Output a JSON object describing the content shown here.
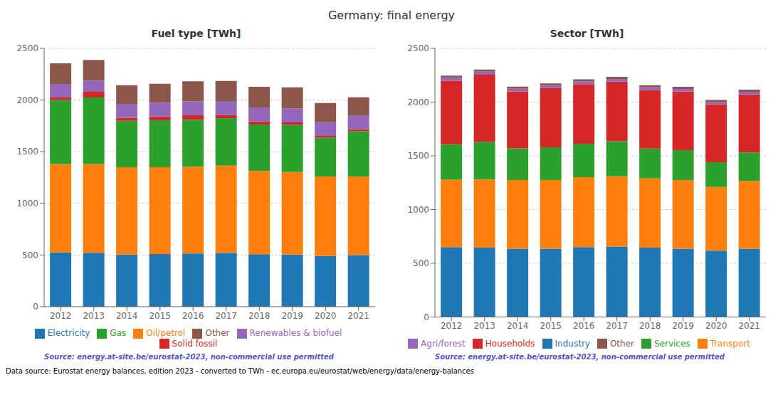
{
  "title": "Germany: final energy",
  "annotations": [
    "Data source: Eurostat energy balances, edition 2023 - converted to TWh - ec.europa.eu/eurostat/web/energy/data/energy-balances"
  ],
  "chart_data": [
    {
      "type": "bar",
      "stacked": true,
      "title": "Fuel type [TWh]",
      "categories": [
        2012,
        2013,
        2014,
        2015,
        2016,
        2017,
        2018,
        2019,
        2020,
        2021
      ],
      "series": [
        {
          "name": "Electricity",
          "color": "#1f77b4",
          "values": [
            525,
            522,
            505,
            510,
            515,
            520,
            508,
            504,
            490,
            500
          ]
        },
        {
          "name": "Oil/petrol",
          "color": "#ff7f0e",
          "values": [
            855,
            858,
            845,
            840,
            840,
            845,
            805,
            800,
            770,
            760
          ]
        },
        {
          "name": "Gas",
          "color": "#2ca02c",
          "values": [
            620,
            645,
            450,
            455,
            455,
            460,
            450,
            455,
            375,
            440
          ]
        },
        {
          "name": "Solid fossil",
          "color": "#d62728",
          "values": [
            25,
            55,
            28,
            38,
            42,
            30,
            30,
            24,
            18,
            18
          ]
        },
        {
          "name": "Renewables & biofuel",
          "color": "#9467bd",
          "values": [
            130,
            108,
            135,
            130,
            135,
            135,
            135,
            135,
            133,
            130
          ]
        },
        {
          "name": "Other",
          "color": "#8c564b",
          "values": [
            200,
            200,
            180,
            185,
            195,
            195,
            200,
            205,
            185,
            178
          ]
        }
      ],
      "ylim": [
        0,
        2500
      ],
      "yticks": [
        0,
        500,
        1000,
        1500,
        2000,
        2500
      ],
      "grid": true,
      "legend": "bottom",
      "annotations": [
        "Source: energy.at-site.be/eurostat-2023, non-commercial use permitted"
      ]
    },
    {
      "type": "bar",
      "stacked": true,
      "title": "Sector [TWh]",
      "categories": [
        2012,
        2013,
        2014,
        2015,
        2016,
        2017,
        2018,
        2019,
        2020,
        2021
      ],
      "series": [
        {
          "name": "Industry",
          "color": "#1f77b4",
          "values": [
            650,
            645,
            635,
            635,
            650,
            655,
            645,
            635,
            618,
            635
          ]
        },
        {
          "name": "Transport",
          "color": "#ff7f0e",
          "values": [
            628,
            635,
            640,
            640,
            652,
            655,
            645,
            640,
            592,
            632
          ]
        },
        {
          "name": "Services",
          "color": "#2ca02c",
          "values": [
            330,
            350,
            295,
            305,
            310,
            325,
            278,
            278,
            230,
            265
          ]
        },
        {
          "name": "Households",
          "color": "#d62728",
          "values": [
            590,
            625,
            530,
            550,
            555,
            555,
            545,
            545,
            540,
            540
          ]
        },
        {
          "name": "Agri/forest",
          "color": "#9467bd",
          "values": [
            28,
            28,
            24,
            24,
            25,
            25,
            24,
            24,
            20,
            24
          ]
        },
        {
          "name": "Other",
          "color": "#8c564b",
          "values": [
            20,
            20,
            20,
            20,
            20,
            20,
            20,
            20,
            20,
            20
          ]
        }
      ],
      "ylim": [
        0,
        2500
      ],
      "yticks": [
        0,
        500,
        1000,
        1500,
        2000,
        2500
      ],
      "grid": true,
      "legend": "bottom",
      "annotations": [
        "Source: energy.at-site.be/eurostat-2023, non-commercial use permitted"
      ]
    }
  ]
}
